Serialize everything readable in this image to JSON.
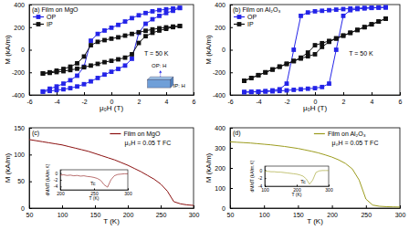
{
  "chart_data": [
    {
      "type": "line",
      "title": "(a) Film on MgO",
      "x_label": "μ₀H (T)",
      "y_label": "M (kA/m)",
      "xlim": [
        -6,
        6
      ],
      "xticks": [
        -6,
        -4,
        -2,
        0,
        2,
        4,
        6
      ],
      "ylim": [
        -400,
        400
      ],
      "yticks": [
        -400,
        -200,
        0,
        200,
        400
      ],
      "legend": "upper left",
      "marker": "square",
      "annotations": [
        "T = 50 K",
        "OP: H",
        "IP: H"
      ],
      "series": [
        {
          "name": "OP",
          "color": "#2424e8",
          "x": [
            5,
            4.5,
            4,
            3.5,
            3,
            2.5,
            2,
            1.5,
            1,
            0.5,
            0,
            -0.5,
            -1,
            -1.5,
            -2,
            -2.5,
            -3,
            -3.5,
            -4,
            -4.5,
            -5,
            -5,
            -4.5,
            -4,
            -3.5,
            -3,
            -2.5,
            -2,
            -1.5,
            -1,
            -0.5,
            0,
            0.5,
            1,
            1.5,
            2,
            2.5,
            3,
            3.5,
            4,
            4.5,
            5
          ],
          "values": [
            370,
            365,
            358,
            350,
            340,
            325,
            305,
            280,
            250,
            220,
            195,
            170,
            140,
            80,
            -150,
            -230,
            -270,
            -300,
            -325,
            -345,
            -370,
            -370,
            -365,
            -358,
            -350,
            -340,
            -325,
            -305,
            -280,
            -250,
            -220,
            -195,
            -170,
            -140,
            -80,
            150,
            230,
            270,
            300,
            325,
            345,
            370
          ]
        },
        {
          "name": "IP",
          "color": "#111111",
          "x": [
            5,
            4.5,
            4,
            3.5,
            3,
            2.5,
            2,
            1.5,
            1,
            0.5,
            0,
            -0.5,
            -1,
            -1.5,
            -2,
            -2.5,
            -3,
            -3.5,
            -4,
            -4.5,
            -5,
            -5,
            -4.5,
            -4,
            -3.5,
            -3,
            -2.5,
            -2,
            -1.5,
            -1,
            -0.5,
            0,
            0.5,
            1,
            1.5,
            2,
            2.5,
            3,
            3.5,
            4,
            4.5,
            5
          ],
          "values": [
            210,
            205,
            198,
            190,
            180,
            168,
            155,
            140,
            125,
            110,
            98,
            85,
            70,
            40,
            -60,
            -120,
            -150,
            -170,
            -185,
            -200,
            -210,
            -210,
            -205,
            -198,
            -190,
            -180,
            -168,
            -155,
            -140,
            -125,
            -110,
            -98,
            -85,
            -70,
            -40,
            60,
            120,
            150,
            170,
            185,
            200,
            210
          ]
        }
      ]
    },
    {
      "type": "line",
      "title": "(b) Film on Al₂O₃",
      "x_label": "μ₀H (T)",
      "y_label": "M (kA/m)",
      "xlim": [
        -6,
        6
      ],
      "xticks": [
        -6,
        -4,
        -2,
        0,
        2,
        4,
        6
      ],
      "ylim": [
        -400,
        400
      ],
      "yticks": [
        -400,
        -200,
        0,
        200,
        400
      ],
      "legend": "upper left",
      "marker": "square",
      "annotations": [
        "T = 50 K"
      ],
      "series": [
        {
          "name": "OP",
          "color": "#2424e8",
          "x": [
            5,
            4.5,
            4,
            3.5,
            3,
            2.5,
            2,
            1.5,
            1,
            0.5,
            0,
            -0.5,
            -1,
            -1.5,
            -2,
            -2.5,
            -3,
            -3.5,
            -4,
            -4.5,
            -5,
            -5,
            -4.5,
            -4,
            -3.5,
            -3,
            -2.5,
            -2,
            -1.5,
            -1,
            -0.5,
            0,
            0.5,
            1,
            1.5,
            2,
            2.5,
            3,
            3.5,
            4,
            4.5,
            5
          ],
          "values": [
            375,
            374,
            372,
            370,
            368,
            365,
            360,
            355,
            350,
            345,
            340,
            330,
            300,
            0,
            -300,
            -350,
            -360,
            -366,
            -370,
            -373,
            -375,
            -375,
            -374,
            -372,
            -370,
            -368,
            -365,
            -360,
            -355,
            -350,
            -345,
            -340,
            -330,
            -300,
            0,
            300,
            350,
            360,
            366,
            370,
            373,
            375
          ]
        },
        {
          "name": "IP",
          "color": "#111111",
          "x": [
            5,
            4.5,
            4,
            3.5,
            3,
            2.5,
            2,
            1.5,
            1,
            0.5,
            0,
            -0.5,
            -1,
            -1.5,
            -2,
            -2.5,
            -3,
            -3.5,
            -4,
            -4.5,
            -5,
            -5,
            -4.5,
            -4,
            -3.5,
            -3,
            -2.5,
            -2,
            -1.5,
            -1,
            -0.5,
            0,
            0.5,
            1,
            1.5,
            2,
            2.5,
            3,
            3.5,
            4,
            4.5,
            5
          ],
          "values": [
            275,
            250,
            225,
            200,
            175,
            150,
            125,
            100,
            78,
            58,
            40,
            -25,
            -70,
            -100,
            -125,
            -150,
            -175,
            -200,
            -225,
            -250,
            -275,
            -275,
            -250,
            -225,
            -200,
            -175,
            -150,
            -125,
            -100,
            -78,
            -58,
            -40,
            25,
            70,
            100,
            125,
            150,
            175,
            200,
            225,
            250,
            275
          ]
        }
      ]
    },
    {
      "type": "line",
      "title": "(c)",
      "x_label": "T (K)",
      "y_label": "M (kA/m)",
      "xlim": [
        50,
        300
      ],
      "xticks": [
        50,
        100,
        150,
        200,
        250,
        300
      ],
      "ylim": [
        0,
        150
      ],
      "yticks": [
        0,
        50,
        100,
        150
      ],
      "legend": "upper right",
      "line_style": "solid",
      "annotations": [
        "μ₀H = 0.05 T  FC"
      ],
      "series": [
        {
          "name": "Film on MgO",
          "color": "#8b1010",
          "x": [
            50,
            60,
            70,
            80,
            90,
            100,
            110,
            120,
            130,
            140,
            150,
            160,
            170,
            180,
            190,
            200,
            210,
            220,
            230,
            240,
            250,
            260,
            270,
            280,
            290,
            300
          ],
          "values": [
            128,
            126,
            124,
            122,
            120,
            118,
            115,
            112,
            109,
            106,
            102,
            98,
            94,
            90,
            85,
            80,
            74,
            68,
            61,
            54,
            45,
            32,
            12,
            8,
            6,
            5
          ]
        }
      ]
    },
    {
      "type": "line",
      "title": "(d)",
      "x_label": "T (K)",
      "y_label": "M (kA/m)",
      "xlim": [
        50,
        300
      ],
      "xticks": [
        50,
        100,
        150,
        200,
        250,
        300
      ],
      "ylim": [
        0,
        400
      ],
      "yticks": [
        0,
        100,
        200,
        300,
        400
      ],
      "legend": "upper right",
      "line_style": "solid",
      "annotations": [
        "μ₀H = 0.05 T  FC"
      ],
      "series": [
        {
          "name": "Film on Al₂O₃",
          "color": "#9c9c1e",
          "x": [
            50,
            60,
            70,
            80,
            90,
            100,
            110,
            120,
            130,
            140,
            150,
            160,
            170,
            180,
            190,
            200,
            210,
            220,
            230,
            240,
            250,
            260,
            270,
            280,
            290,
            300
          ],
          "values": [
            330,
            328,
            326,
            324,
            321,
            318,
            315,
            311,
            307,
            302,
            297,
            290,
            283,
            275,
            265,
            254,
            240,
            222,
            195,
            140,
            45,
            15,
            9,
            7,
            6,
            5
          ]
        }
      ]
    },
    {
      "type": "line",
      "x_label": "T (K)",
      "y_label": "dM/dT (kA/m.K)",
      "xlim": [
        200,
        300
      ],
      "xticks": [
        200,
        250,
        300
      ],
      "ylim": [
        -5,
        1
      ],
      "yticks": [
        -4,
        -2,
        0
      ],
      "line_style": "solid",
      "annotations": [
        "Tc"
      ],
      "series": [
        {
          "color": "#8b1010",
          "x": [
            200,
            205,
            210,
            215,
            220,
            225,
            230,
            235,
            240,
            245,
            250,
            255,
            260,
            265,
            270,
            275,
            280,
            285,
            290,
            295,
            300
          ],
          "values": [
            -0.6,
            -0.5,
            -0.7,
            -0.6,
            -0.8,
            -0.7,
            -0.9,
            -0.8,
            -1.0,
            -1.1,
            -1.3,
            -1.6,
            -2.2,
            -3.5,
            -4.2,
            -2.0,
            -0.8,
            -0.4,
            -0.3,
            -0.2,
            -0.2
          ]
        }
      ]
    },
    {
      "type": "line",
      "x_label": "T (K)",
      "y_label": "dM/dT (kA/m.K)",
      "xlim": [
        100,
        300
      ],
      "xticks": [
        100,
        200,
        300
      ],
      "ylim": [
        -4,
        1
      ],
      "yticks": [
        -4,
        -2,
        0
      ],
      "line_style": "solid",
      "annotations": [
        "Tc"
      ],
      "series": [
        {
          "color": "#9c9c1e",
          "x": [
            100,
            110,
            120,
            130,
            140,
            150,
            160,
            170,
            180,
            190,
            200,
            210,
            220,
            230,
            240,
            250,
            260,
            270,
            280,
            290,
            300
          ],
          "values": [
            -0.3,
            -0.3,
            -0.4,
            -0.4,
            -0.5,
            -0.5,
            -0.6,
            -0.7,
            -0.8,
            -0.9,
            -1.0,
            -1.2,
            -1.5,
            -2.2,
            -3.5,
            -2.5,
            -0.6,
            -0.2,
            -0.1,
            -0.1,
            -0.1
          ]
        }
      ]
    }
  ]
}
